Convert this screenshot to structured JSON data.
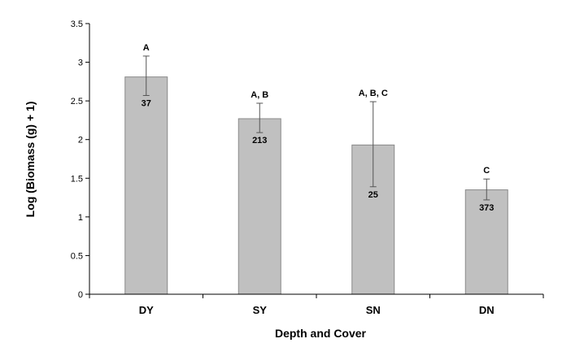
{
  "chart_data": {
    "type": "bar",
    "title": "",
    "xlabel": "Depth and Cover",
    "ylabel": "Log (Biomass (g) + 1)",
    "ylim": [
      0,
      3.5
    ],
    "yticks": [
      "0",
      "0.5",
      "1",
      "1.5",
      "2",
      "2.5",
      "3",
      "3.5"
    ],
    "grid": false,
    "categories": [
      "DY",
      "SY",
      "SN",
      "DN"
    ],
    "values": [
      2.81,
      2.27,
      1.93,
      1.35
    ],
    "error_low": [
      2.57,
      2.09,
      1.39,
      1.22
    ],
    "error_high": [
      3.08,
      2.47,
      2.49,
      1.49
    ],
    "bar_labels": [
      "37",
      "213",
      "25",
      "373"
    ],
    "significance_labels": [
      "A",
      "A, B",
      "A, B, C",
      "C"
    ],
    "colors": {
      "bar_fill": "#c0c0c0",
      "bar_stroke": "#8a8a8a",
      "axis": "#000000"
    }
  }
}
